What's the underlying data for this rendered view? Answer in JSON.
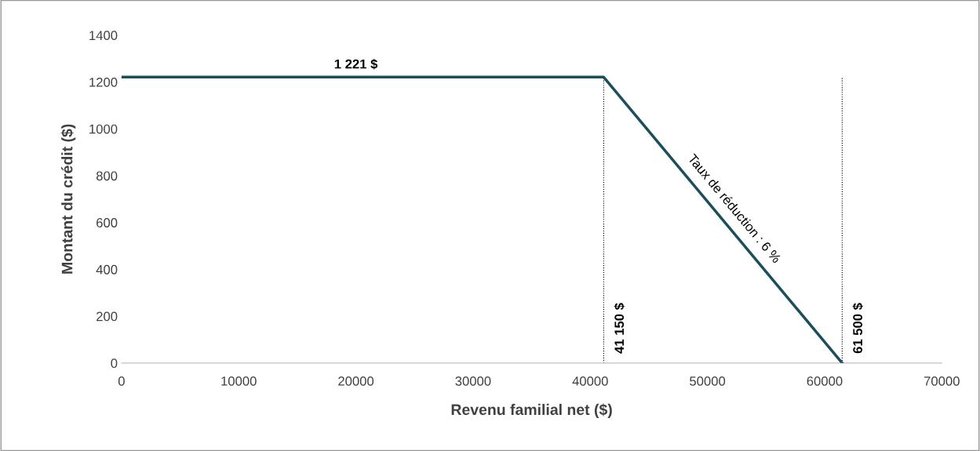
{
  "chart_data": {
    "type": "line",
    "xlabel": "Revenu familial net ($)",
    "ylabel": "Montant du crédit ($)",
    "x": [
      0,
      41150,
      61500
    ],
    "series": [
      {
        "color": "#1b4f5c",
        "values": [
          1221,
          1221,
          0
        ]
      }
    ],
    "xlim": [
      0,
      70000
    ],
    "xticks": [
      0,
      10000,
      20000,
      30000,
      40000,
      50000,
      60000,
      70000
    ],
    "ylim": [
      0,
      1400
    ],
    "yticks": [
      0,
      200,
      400,
      600,
      800,
      1000,
      1200,
      1400
    ],
    "grid": false,
    "line_style": "solid",
    "marker": "none",
    "ref_lines": [
      {
        "axis": "x",
        "value": 41150,
        "label": "41 150 $",
        "color": "#000000",
        "line_style": "dotted"
      },
      {
        "axis": "x",
        "value": 61500,
        "label": "61 500 $",
        "color": "#000000",
        "line_style": "dotted"
      }
    ],
    "annotations": [
      {
        "text": "1 221 $",
        "x": 20000,
        "y": 1221
      },
      {
        "text": "Taux de réduction : 6 %",
        "x": 51300,
        "y": 610
      }
    ]
  }
}
